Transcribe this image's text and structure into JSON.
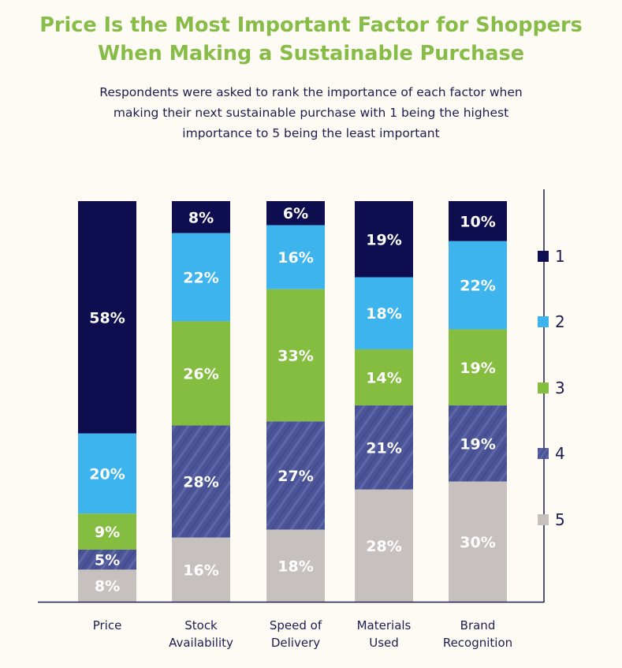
{
  "title_line1": "Price Is the Most Important Factor for Shoppers",
  "title_line2": "When Making a Sustainable Purchase",
  "subtitle_line1": "Respondents were asked to rank the importance of each factor when",
  "subtitle_line2": "making their next sustainable purchase with 1 being the highest",
  "subtitle_line3": "importance to 5 being the least important",
  "colors": {
    "rank1": "#0e0d4f",
    "rank2": "#3db4ee",
    "rank3": "#85bd41",
    "rank4": "#4a5497",
    "rank5": "#c6c1bf"
  },
  "chart_data": {
    "type": "bar",
    "stacked": true,
    "categories": [
      [
        "Price"
      ],
      [
        "Stock",
        "Availability"
      ],
      [
        "Speed of",
        "Delivery"
      ],
      [
        "Materials",
        "Used"
      ],
      [
        "Brand",
        "Recognition"
      ]
    ],
    "series": [
      {
        "name": "1",
        "values": [
          58,
          8,
          6,
          19,
          10
        ],
        "labels": [
          "58%",
          "8%",
          "6%",
          "19%",
          "10%"
        ]
      },
      {
        "name": "2",
        "values": [
          20,
          22,
          16,
          18,
          22
        ],
        "labels": [
          "20%",
          "22%",
          "16%",
          "18%",
          "22%"
        ]
      },
      {
        "name": "3",
        "values": [
          9,
          26,
          33,
          14,
          19
        ],
        "labels": [
          "9%",
          "26%",
          "33%",
          "14%",
          "19%"
        ]
      },
      {
        "name": "4",
        "values": [
          5,
          28,
          27,
          21,
          19
        ],
        "labels": [
          "5%",
          "28%",
          "27%",
          "21%",
          "19%"
        ]
      },
      {
        "name": "5",
        "values": [
          8,
          16,
          18,
          28,
          30
        ],
        "labels": [
          "8%",
          "16%",
          "18%",
          "28%",
          "30%"
        ]
      }
    ],
    "legend_position": "right",
    "grid": false
  }
}
